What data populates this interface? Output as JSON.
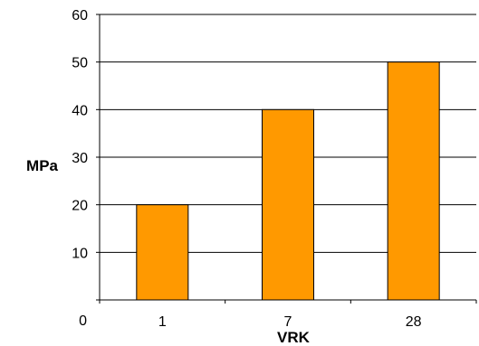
{
  "chart_data": {
    "type": "bar",
    "categories": [
      "1",
      "7",
      "28"
    ],
    "values": [
      20,
      40,
      50
    ],
    "title": "",
    "xlabel": "VRK",
    "ylabel": "MPa",
    "ylim": [
      0,
      60
    ],
    "yticks": [
      "0",
      "10",
      "20",
      "30",
      "40",
      "50",
      "60"
    ],
    "grid": true,
    "legend": "none",
    "bar_color": "#FF9900"
  }
}
